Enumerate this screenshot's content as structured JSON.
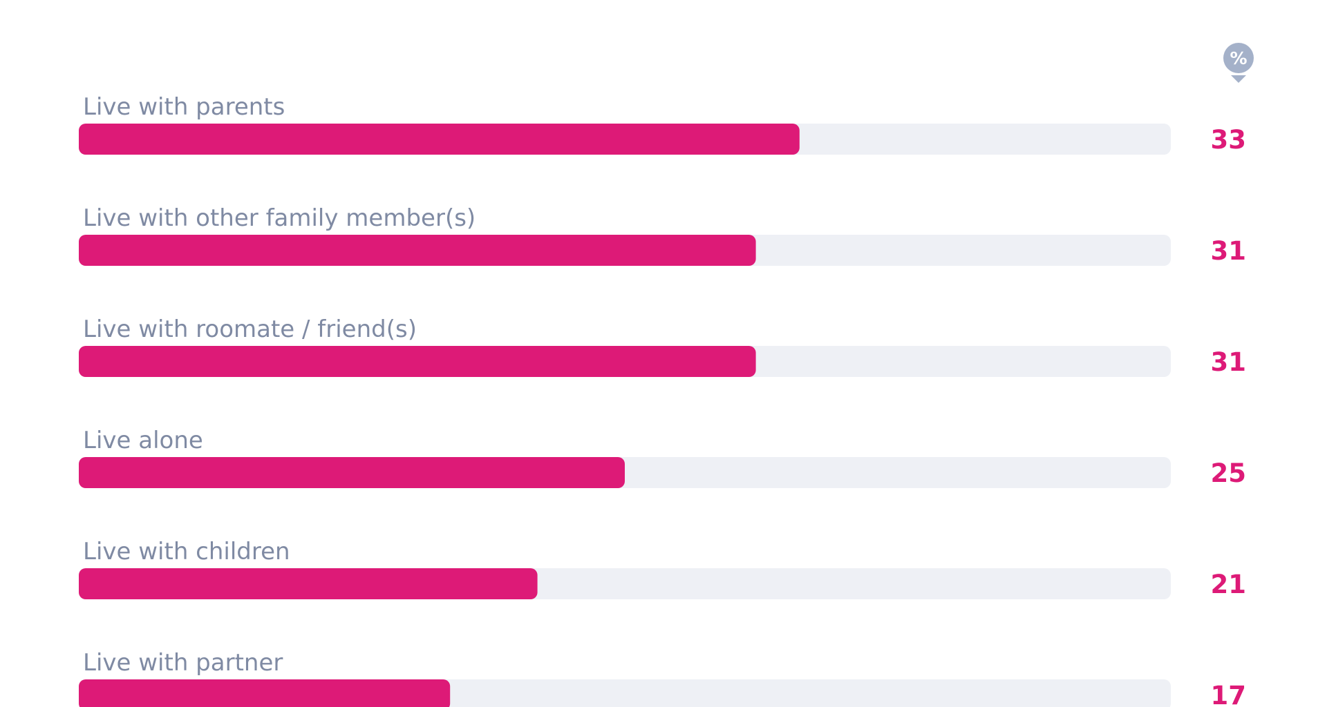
{
  "chart_data": {
    "type": "bar",
    "orientation": "horizontal",
    "unit": "%",
    "categories": [
      "Live with parents",
      "Live with other family member(s)",
      "Live with roomate / friend(s)",
      "Live alone",
      "Live with children",
      "Live with partner"
    ],
    "values": [
      33,
      31,
      31,
      25,
      21,
      17
    ],
    "xlim": [
      0,
      50
    ],
    "grid": false,
    "legend": "none"
  },
  "colors": {
    "bar": "#dd1a77",
    "track": "#eef0f5",
    "label": "#7f8aa3",
    "value": "#dd1a77",
    "unit_badge": "#a4b1c9"
  },
  "icons": {
    "unit_badge": "percent-marker-icon"
  }
}
